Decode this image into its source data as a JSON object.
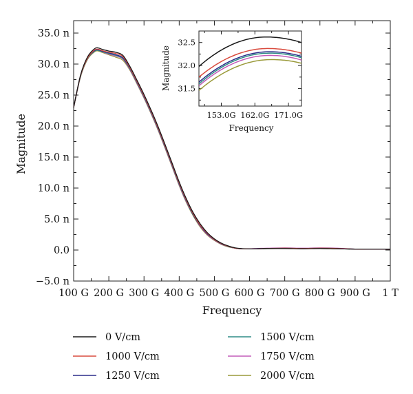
{
  "chart_data": [
    {
      "type": "line",
      "title": "",
      "xlabel": "Frequency",
      "ylabel": "Magnitude",
      "x_unit": "GHz",
      "xlim": [
        100,
        1000
      ],
      "ylim": [
        -5.0,
        37.0
      ],
      "x_ticks": [
        100,
        200,
        300,
        400,
        500,
        600,
        700,
        800,
        900,
        1000
      ],
      "x_tick_labels": [
        "100 G",
        "200 G",
        "300 G",
        "400 G",
        "500 G",
        "600 G",
        "700 G",
        "800 G",
        "900 G",
        "1 T"
      ],
      "y_ticks": [
        -5,
        0,
        5,
        10,
        15,
        20,
        25,
        30,
        35
      ],
      "y_tick_labels": [
        "−5.0 n",
        "0.0",
        "5.0 n",
        "10.0 n",
        "15.0 n",
        "20.0 n",
        "25.0 n",
        "30.0 n",
        "35.0 n"
      ],
      "x": [
        100,
        120,
        140,
        160,
        170,
        180,
        200,
        220,
        240,
        260,
        280,
        300,
        320,
        340,
        360,
        380,
        400,
        420,
        440,
        460,
        480,
        500,
        520,
        540,
        560,
        580,
        600,
        620,
        650,
        700,
        750,
        800,
        850,
        900,
        950,
        1000
      ],
      "series": [
        {
          "name": "0 V/cm",
          "color": "#1a1a1a",
          "values": [
            23.0,
            28.3,
            31.2,
            32.5,
            32.6,
            32.4,
            32.1,
            31.9,
            31.4,
            29.6,
            27.4,
            25.1,
            22.6,
            19.9,
            17.0,
            14.0,
            11.0,
            8.3,
            6.0,
            4.2,
            2.8,
            1.8,
            1.1,
            0.65,
            0.35,
            0.22,
            0.18,
            0.2,
            0.25,
            0.25,
            0.2,
            0.25,
            0.2,
            0.15,
            0.15,
            0.15
          ]
        },
        {
          "name": "1000 V/cm",
          "color": "#d94a3d",
          "values": [
            23.0,
            28.2,
            31.0,
            32.3,
            32.4,
            32.2,
            31.9,
            31.7,
            31.2,
            29.4,
            27.2,
            24.9,
            22.4,
            19.7,
            16.8,
            13.8,
            10.8,
            8.1,
            5.8,
            4.0,
            2.7,
            1.7,
            1.05,
            0.6,
            0.3,
            0.2,
            0.18,
            0.2,
            0.25,
            0.3,
            0.25,
            0.3,
            0.25,
            0.15,
            0.15,
            0.15
          ]
        },
        {
          "name": "1250 V/cm",
          "color": "#2c2d8a",
          "values": [
            23.0,
            28.2,
            31.0,
            32.2,
            32.3,
            32.1,
            31.8,
            31.5,
            31.0,
            29.3,
            27.1,
            24.8,
            22.3,
            19.6,
            16.7,
            13.7,
            10.7,
            8.0,
            5.7,
            3.9,
            2.6,
            1.7,
            1.0,
            0.6,
            0.3,
            0.2,
            0.2,
            0.22,
            0.25,
            0.3,
            0.25,
            0.3,
            0.25,
            0.15,
            0.15,
            0.15
          ]
        },
        {
          "name": "1500 V/cm",
          "color": "#2e8c86",
          "values": [
            23.0,
            28.1,
            30.9,
            32.1,
            32.2,
            32.0,
            31.7,
            31.4,
            30.9,
            29.2,
            27.0,
            24.7,
            22.2,
            19.5,
            16.6,
            13.6,
            10.6,
            7.9,
            5.6,
            3.9,
            2.6,
            1.65,
            1.0,
            0.55,
            0.3,
            0.2,
            0.2,
            0.2,
            0.22,
            0.25,
            0.22,
            0.25,
            0.2,
            0.15,
            0.15,
            0.15
          ]
        },
        {
          "name": "1750 V/cm",
          "color": "#c25bb8",
          "values": [
            23.0,
            28.1,
            30.9,
            32.1,
            32.2,
            32.0,
            31.6,
            31.3,
            30.8,
            29.1,
            26.9,
            24.6,
            22.1,
            19.4,
            16.5,
            13.5,
            10.5,
            7.8,
            5.6,
            3.8,
            2.5,
            1.6,
            0.95,
            0.55,
            0.3,
            0.2,
            0.2,
            0.25,
            0.3,
            0.35,
            0.3,
            0.35,
            0.3,
            0.15,
            0.15,
            0.15
          ]
        },
        {
          "name": "2000 V/cm",
          "color": "#9a9a3a",
          "values": [
            23.0,
            28.0,
            30.8,
            32.0,
            32.1,
            31.9,
            31.5,
            31.1,
            30.6,
            29.0,
            26.8,
            24.5,
            22.0,
            19.3,
            16.4,
            13.4,
            10.4,
            7.7,
            5.5,
            3.7,
            2.4,
            1.55,
            0.9,
            0.5,
            0.3,
            0.2,
            0.2,
            0.2,
            0.22,
            0.25,
            0.22,
            0.25,
            0.2,
            0.15,
            0.15,
            0.15
          ]
        }
      ],
      "legend": {
        "placement": "bottom",
        "columns": 2
      },
      "grid": false
    },
    {
      "type": "line",
      "title": "",
      "xlabel": "Frequency",
      "ylabel": "Magnitude",
      "x_unit": "GHz",
      "xlim": [
        147.0,
        174.5
      ],
      "ylim": [
        31.12,
        32.75
      ],
      "x_ticks": [
        153.0,
        162.0,
        171.0
      ],
      "x_tick_labels": [
        "153.0G",
        "162.0G",
        "171.0G"
      ],
      "y_ticks": [
        31.5,
        32.0,
        32.5
      ],
      "y_tick_labels": [
        "31.5",
        "32.0",
        "32.5"
      ],
      "series": [
        {
          "name": "0 V/cm",
          "color": "#1a1a1a",
          "start": 31.98,
          "peak_x": 165.0,
          "peak": 32.62,
          "end": 32.5
        },
        {
          "name": "1000 V/cm",
          "color": "#d94a3d",
          "start": 31.75,
          "peak_x": 165.5,
          "peak": 32.37,
          "end": 32.27
        },
        {
          "name": "1250 V/cm",
          "color": "#2c2d8a",
          "start": 31.64,
          "peak_x": 166.0,
          "peak": 32.3,
          "end": 32.2
        },
        {
          "name": "1500 V/cm",
          "color": "#2e8c86",
          "start": 31.6,
          "peak_x": 166.0,
          "peak": 32.27,
          "end": 32.17
        },
        {
          "name": "1750 V/cm",
          "color": "#c25bb8",
          "start": 31.56,
          "peak_x": 166.0,
          "peak": 32.22,
          "end": 32.12
        },
        {
          "name": "2000 V/cm",
          "color": "#9a9a3a",
          "start": 31.46,
          "peak_x": 166.5,
          "peak": 32.13,
          "end": 32.05
        }
      ]
    }
  ]
}
